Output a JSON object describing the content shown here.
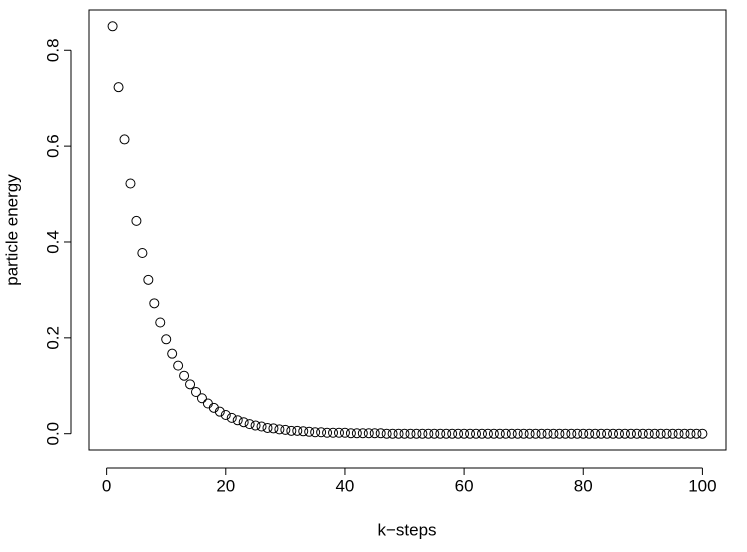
{
  "chart_data": {
    "type": "scatter",
    "xlabel": "k−steps",
    "ylabel": "particle energy",
    "x": [
      1,
      2,
      3,
      4,
      5,
      6,
      7,
      8,
      9,
      10,
      11,
      12,
      13,
      14,
      15,
      16,
      17,
      18,
      19,
      20,
      21,
      22,
      23,
      24,
      25,
      26,
      27,
      28,
      29,
      30,
      31,
      32,
      33,
      34,
      35,
      36,
      37,
      38,
      39,
      40,
      41,
      42,
      43,
      44,
      45,
      46,
      47,
      48,
      49,
      50,
      51,
      52,
      53,
      54,
      55,
      56,
      57,
      58,
      59,
      60,
      61,
      62,
      63,
      64,
      65,
      66,
      67,
      68,
      69,
      70,
      71,
      72,
      73,
      74,
      75,
      76,
      77,
      78,
      79,
      80,
      81,
      82,
      83,
      84,
      85,
      86,
      87,
      88,
      89,
      90,
      91,
      92,
      93,
      94,
      95,
      96,
      97,
      98,
      99,
      100
    ],
    "values": [
      0.85,
      0.723,
      0.614,
      0.522,
      0.444,
      0.377,
      0.321,
      0.272,
      0.232,
      0.197,
      0.167,
      0.142,
      0.121,
      0.103,
      0.087,
      0.074,
      0.063,
      0.054,
      0.046,
      0.039,
      0.033,
      0.028,
      0.024,
      0.02,
      0.017,
      0.015,
      0.012,
      0.011,
      0.009,
      0.008,
      0.006,
      0.006,
      0.005,
      0.004,
      0.003,
      0.003,
      0.002,
      0.002,
      0.002,
      0.002,
      0.001,
      0.001,
      0.001,
      0.001,
      0.001,
      0.001,
      0,
      0,
      0,
      0,
      0,
      0,
      0,
      0,
      0,
      0,
      0,
      0,
      0,
      0,
      0,
      0,
      0,
      0,
      0,
      0,
      0,
      0,
      0,
      0,
      0,
      0,
      0,
      0,
      0,
      0,
      0,
      0,
      0,
      0,
      0,
      0,
      0,
      0,
      0,
      0,
      0,
      0,
      0,
      0,
      0,
      0,
      0,
      0,
      0,
      0,
      0,
      0,
      0,
      0
    ],
    "color": "#000000",
    "xlim": [
      -2.96,
      103.96
    ],
    "xticks": [
      0,
      20,
      40,
      60,
      80,
      100
    ],
    "ylim": [
      -0.034,
      0.884
    ],
    "yticks": [
      {
        "value": 0,
        "label": "0.0"
      },
      0.2,
      0.4,
      0.6,
      0.8
    ]
  }
}
